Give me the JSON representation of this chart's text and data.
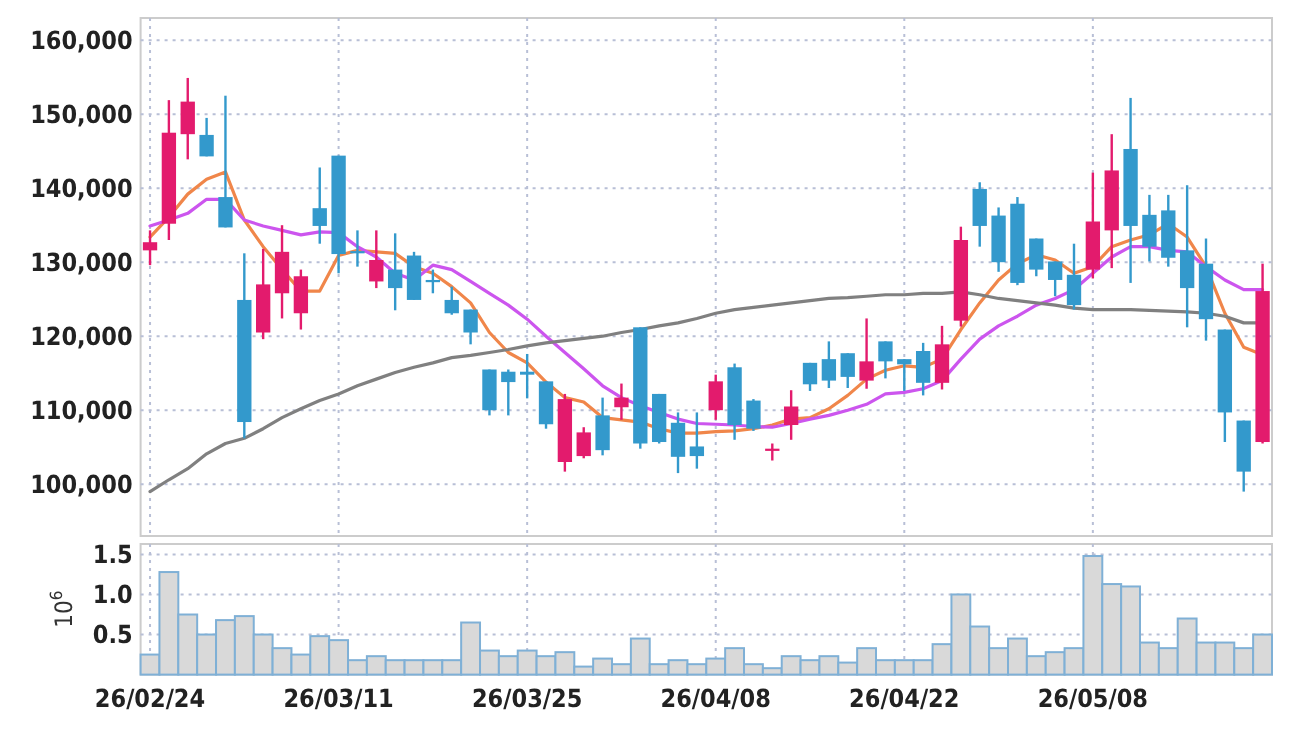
{
  "chart_data": [
    {
      "type": "candlestick",
      "categories": [
        null,
        null,
        null,
        null,
        null,
        null,
        null,
        null,
        null,
        null,
        null,
        null,
        null,
        null,
        null,
        null,
        null,
        null,
        null,
        null,
        null,
        null,
        null,
        null,
        null,
        null,
        null,
        null,
        null,
        null,
        null,
        null,
        null,
        null,
        null,
        null,
        null,
        null,
        null,
        null,
        null,
        null,
        null,
        null,
        null,
        null,
        null,
        null,
        null,
        null,
        null,
        null,
        null,
        null,
        null,
        null,
        null,
        null,
        null,
        null
      ],
      "ohlc": [
        [
          131600,
          134300,
          129600,
          132700
        ],
        [
          135200,
          151900,
          133000,
          147500
        ],
        [
          147300,
          154900,
          143900,
          151700
        ],
        [
          147200,
          149500,
          144300,
          144300
        ],
        [
          138800,
          152500,
          134700,
          134700
        ],
        [
          124900,
          131200,
          106200,
          108400
        ],
        [
          120500,
          131800,
          119600,
          127000
        ],
        [
          125800,
          135000,
          122400,
          131400
        ],
        [
          123100,
          129000,
          120900,
          128100
        ],
        [
          137300,
          142800,
          132500,
          134900
        ],
        [
          144400,
          144400,
          128500,
          131100
        ],
        [
          131500,
          134300,
          129400,
          131200
        ],
        [
          127400,
          134300,
          126500,
          130300
        ],
        [
          129000,
          133900,
          123500,
          126500
        ],
        [
          130900,
          131400,
          124900,
          124900
        ],
        [
          127600,
          129000,
          125800,
          127300
        ],
        [
          124900,
          126700,
          122900,
          123100
        ],
        [
          123600,
          123600,
          118900,
          120500
        ],
        [
          115500,
          115500,
          109300,
          110000
        ],
        [
          115200,
          115500,
          109300,
          113800
        ],
        [
          115200,
          117600,
          111600,
          114800
        ],
        [
          113900,
          113900,
          107500,
          108100
        ],
        [
          103000,
          112200,
          101700,
          111500
        ],
        [
          103800,
          107700,
          103500,
          107000
        ],
        [
          109300,
          111700,
          103900,
          104600
        ],
        [
          110400,
          113600,
          108700,
          111700
        ],
        [
          121200,
          121200,
          104800,
          105500
        ],
        [
          112200,
          112200,
          105500,
          105700
        ],
        [
          108300,
          109700,
          101500,
          103700
        ],
        [
          105100,
          109700,
          102100,
          103800
        ],
        [
          110000,
          114800,
          108700,
          113900
        ],
        [
          115800,
          116300,
          106000,
          108000
        ],
        [
          111300,
          111500,
          107200,
          107500
        ],
        [
          104500,
          105500,
          103200,
          104800
        ],
        [
          108000,
          112700,
          106000,
          110500
        ],
        [
          116400,
          116400,
          112600,
          113500
        ],
        [
          116900,
          119300,
          113000,
          114000
        ],
        [
          117700,
          117700,
          113000,
          114500
        ],
        [
          114000,
          122400,
          112900,
          116600
        ],
        [
          119300,
          119300,
          114300,
          116600
        ],
        [
          116900,
          116900,
          112600,
          116200
        ],
        [
          118000,
          119100,
          112000,
          113700
        ],
        [
          113700,
          121400,
          112800,
          118900
        ],
        [
          122100,
          134800,
          121300,
          133000
        ],
        [
          139900,
          140800,
          132100,
          134900
        ],
        [
          136300,
          137400,
          128700,
          130000
        ],
        [
          137900,
          138800,
          126900,
          127200
        ],
        [
          133200,
          133200,
          128100,
          129000
        ],
        [
          130100,
          130100,
          125400,
          127600
        ],
        [
          128300,
          132500,
          123600,
          124200
        ],
        [
          129000,
          142100,
          127800,
          135500
        ],
        [
          134300,
          147300,
          129200,
          142400
        ],
        [
          145300,
          152200,
          127200,
          134900
        ],
        [
          136400,
          139100,
          130100,
          132100
        ],
        [
          137000,
          139100,
          129400,
          130600
        ],
        [
          131600,
          140400,
          121200,
          126500
        ],
        [
          129800,
          133200,
          119400,
          122300
        ],
        [
          120900,
          120900,
          105700,
          109700
        ],
        [
          108600,
          108600,
          99000,
          101700
        ],
        [
          105700,
          129800,
          105500,
          126100
        ]
      ],
      "colors": [
        "#e31b6d",
        "#e31b6d",
        "#e31b6d",
        "#3399cc",
        "#3399cc",
        "#3399cc",
        "#e31b6d",
        "#e31b6d",
        "#e31b6d",
        "#3399cc",
        "#3399cc",
        "#3399cc",
        "#e31b6d",
        "#3399cc",
        "#3399cc",
        "#3399cc",
        "#3399cc",
        "#3399cc",
        "#3399cc",
        "#3399cc",
        "#3399cc",
        "#3399cc",
        "#e31b6d",
        "#e31b6d",
        "#3399cc",
        "#e31b6d",
        "#3399cc",
        "#3399cc",
        "#3399cc",
        "#3399cc",
        "#e31b6d",
        "#3399cc",
        "#3399cc",
        "#e31b6d",
        "#e31b6d",
        "#3399cc",
        "#3399cc",
        "#3399cc",
        "#e31b6d",
        "#3399cc",
        "#3399cc",
        "#3399cc",
        "#e31b6d",
        "#e31b6d",
        "#3399cc",
        "#3399cc",
        "#3399cc",
        "#3399cc",
        "#3399cc",
        "#3399cc",
        "#e31b6d",
        "#e31b6d",
        "#3399cc",
        "#3399cc",
        "#3399cc",
        "#3399cc",
        "#3399cc",
        "#3399cc",
        "#3399cc",
        "#e31b6d"
      ],
      "series": [
        {
          "type": "line",
          "color": "#f0864a",
          "values": [
            133400,
            136100,
            139200,
            141200,
            142200,
            135700,
            132100,
            129000,
            126100,
            126100,
            130900,
            131600,
            131400,
            131200,
            129400,
            128500,
            126700,
            124500,
            120500,
            117800,
            116400,
            113800,
            111700,
            111100,
            109000,
            108700,
            108400,
            107500,
            106900,
            106900,
            107100,
            107200,
            107500,
            108000,
            108800,
            109000,
            110200,
            112000,
            114200,
            115400,
            116000,
            115800,
            116900,
            120900,
            124500,
            127600,
            129800,
            131000,
            130300,
            128500,
            129400,
            132100,
            133000,
            133700,
            135200,
            133400,
            129400,
            123100,
            118500,
            117500
          ]
        },
        {
          "type": "line",
          "color": "#cc55ee",
          "values": [
            134900,
            135700,
            136600,
            138500,
            138500,
            135700,
            134900,
            134300,
            133700,
            134100,
            134000,
            132100,
            130700,
            128500,
            127600,
            129600,
            129000,
            127400,
            125800,
            124200,
            122300,
            120000,
            117800,
            115600,
            113300,
            111700,
            110600,
            109700,
            108800,
            108200,
            108100,
            108000,
            107800,
            107700,
            108200,
            108800,
            109300,
            110000,
            110800,
            112200,
            112400,
            112900,
            114000,
            116900,
            119600,
            121400,
            122700,
            124200,
            125100,
            126300,
            128500,
            130700,
            132100,
            132100,
            131600,
            131400,
            129400,
            127600,
            126300,
            126300
          ]
        },
        {
          "type": "line",
          "color": "#808080",
          "values": [
            99000,
            100600,
            102100,
            104100,
            105500,
            106200,
            107500,
            109000,
            110200,
            111300,
            112200,
            113300,
            114200,
            115100,
            115800,
            116400,
            117100,
            117400,
            117800,
            118200,
            118700,
            119100,
            119400,
            119700,
            120000,
            120500,
            120900,
            121400,
            121800,
            122400,
            123100,
            123600,
            123900,
            124200,
            124500,
            124800,
            125100,
            125200,
            125400,
            125600,
            125600,
            125800,
            125800,
            126000,
            125600,
            125100,
            124800,
            124500,
            124200,
            123800,
            123600,
            123600,
            123600,
            123500,
            123400,
            123300,
            123100,
            122700,
            121800,
            121800
          ]
        }
      ],
      "ylim": [
        93000,
        163000
      ],
      "yticks": [
        {
          "value": 100000,
          "label": "100,000"
        },
        {
          "value": 110000,
          "label": "110,000"
        },
        {
          "value": 120000,
          "label": "120,000"
        },
        {
          "value": 130000,
          "label": "130,000"
        },
        {
          "value": 140000,
          "label": "140,000"
        },
        {
          "value": 150000,
          "label": "150,000"
        },
        {
          "value": 160000,
          "label": "160,000"
        }
      ],
      "grid": true,
      "tick_labels": "y"
    },
    {
      "type": "bar",
      "categories": [
        "26/02/24",
        null,
        null,
        null,
        null,
        null,
        null,
        null,
        null,
        null,
        "26/03/11",
        null,
        null,
        null,
        null,
        null,
        null,
        null,
        null,
        null,
        "26/03/25",
        null,
        null,
        null,
        null,
        null,
        null,
        null,
        null,
        null,
        "26/04/08",
        null,
        null,
        null,
        null,
        null,
        null,
        null,
        null,
        null,
        "26/04/22",
        null,
        null,
        null,
        null,
        null,
        null,
        null,
        null,
        null,
        "26/05/08",
        null,
        null,
        null,
        null,
        null,
        null,
        null,
        null,
        null
      ],
      "values": [
        0.25,
        1.28,
        0.75,
        0.5,
        0.68,
        0.73,
        0.5,
        0.33,
        0.25,
        0.48,
        0.43,
        0.18,
        0.23,
        0.18,
        0.18,
        0.18,
        0.18,
        0.65,
        0.3,
        0.23,
        0.3,
        0.23,
        0.28,
        0.1,
        0.2,
        0.13,
        0.45,
        0.13,
        0.18,
        0.13,
        0.2,
        0.33,
        0.13,
        0.08,
        0.23,
        0.18,
        0.23,
        0.15,
        0.33,
        0.18,
        0.18,
        0.18,
        0.38,
        1.0,
        0.6,
        0.33,
        0.45,
        0.23,
        0.28,
        0.33,
        1.48,
        1.13,
        1.1,
        0.4,
        0.33,
        0.7,
        0.4,
        0.4,
        0.33,
        0.5
      ],
      "color": "#d9d9d9",
      "ylabel": "10$^{6}$",
      "ylim": [
        0,
        1.63
      ],
      "yticks": [
        {
          "value": 0.5,
          "label": "0.5"
        },
        {
          "value": 1,
          "label": "1.0"
        },
        {
          "value": 1.5,
          "label": "1.5"
        }
      ],
      "grid": true
    }
  ]
}
